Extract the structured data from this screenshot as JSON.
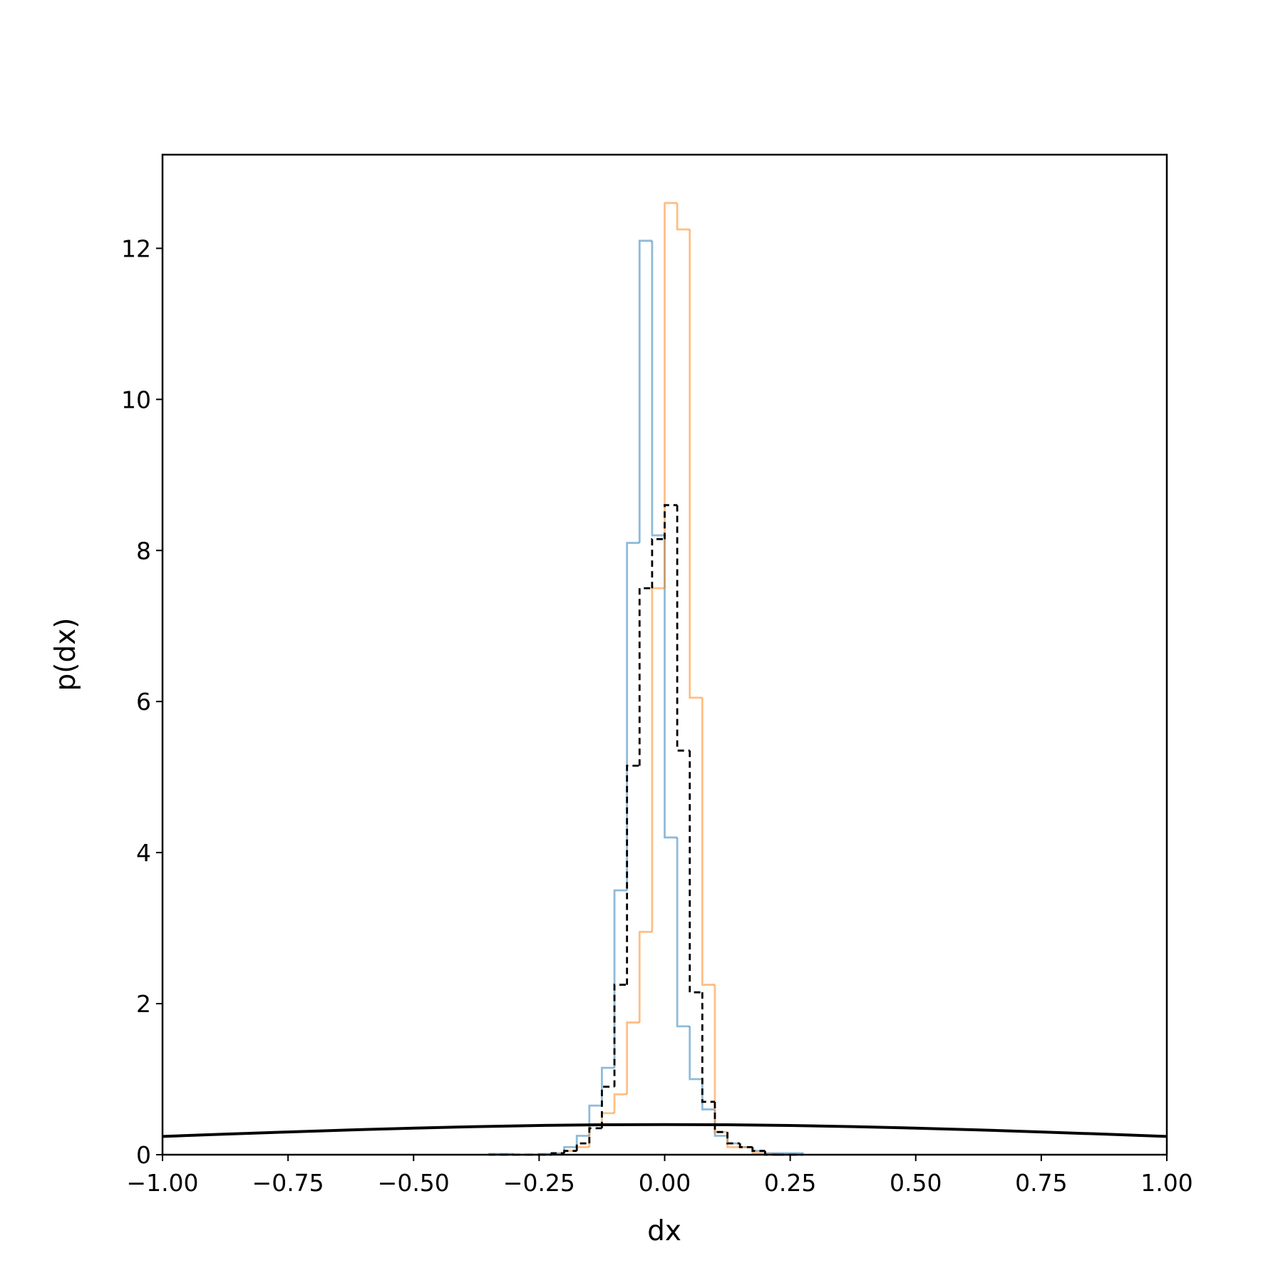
{
  "chart_data": {
    "type": "histogram",
    "xlabel": "dx",
    "ylabel": "p(dx)",
    "bins": [
      -0.35,
      -0.325,
      -0.3,
      -0.275,
      -0.25,
      -0.225,
      -0.2,
      -0.175,
      -0.15,
      -0.125,
      -0.1,
      -0.075,
      -0.05,
      -0.025,
      0,
      0.025,
      0.05,
      0.075,
      0.1,
      0.125,
      0.15,
      0.175,
      0.2,
      0.225,
      0.25,
      0.275
    ],
    "series": [
      {
        "color": "#1f77b4",
        "alpha": 0.5,
        "linestyle": "solid",
        "values": [
          0.01,
          0.01,
          0,
          0,
          0.01,
          0.02,
          0.1,
          0.25,
          0.65,
          1.15,
          3.5,
          8.1,
          12.1,
          8.2,
          4.2,
          1.7,
          1.0,
          0.6,
          0.25,
          0.15,
          0.1,
          0.05,
          0.02,
          0.02,
          0.02
        ]
      },
      {
        "color": "#ff7f0e",
        "alpha": 0.5,
        "linestyle": "solid",
        "values": [
          0,
          0,
          0,
          0,
          0,
          0.01,
          0.05,
          0.1,
          0.4,
          0.55,
          0.8,
          1.75,
          2.95,
          7.5,
          12.6,
          12.25,
          6.05,
          2.25,
          0.3,
          0.1,
          0.1,
          0.02,
          0.01,
          0,
          0
        ]
      },
      {
        "color": "#000000",
        "alpha": 1,
        "linestyle": "dashed",
        "values": [
          0,
          0,
          0,
          0,
          0,
          0.02,
          0.05,
          0.15,
          0.35,
          0.9,
          2.25,
          5.15,
          7.5,
          8.15,
          8.6,
          5.35,
          2.15,
          0.7,
          0.3,
          0.15,
          0.1,
          0.05,
          0,
          0,
          0
        ]
      }
    ],
    "lines": [
      {
        "color": "#000000",
        "x": [
          -1,
          -0.875,
          -0.75,
          -0.625,
          -0.5,
          -0.375,
          -0.25,
          -0.125,
          0,
          0.125,
          0.25,
          0.375,
          0.5,
          0.625,
          0.75,
          0.875,
          1
        ],
        "y": [
          0.242,
          0.272,
          0.301,
          0.328,
          0.352,
          0.372,
          0.387,
          0.396,
          0.399,
          0.396,
          0.387,
          0.372,
          0.352,
          0.328,
          0.301,
          0.272,
          0.242
        ]
      }
    ],
    "xlim": [
      -1,
      1
    ],
    "ylim": [
      0,
      13.24
    ],
    "xticks": [
      {
        "value": -1,
        "label": "−1.00"
      },
      {
        "value": -0.75,
        "label": "−0.75"
      },
      {
        "value": -0.5,
        "label": "−0.50"
      },
      {
        "value": -0.25,
        "label": "−0.25"
      },
      {
        "value": 0,
        "label": "0.00"
      },
      {
        "value": 0.25,
        "label": "0.25"
      },
      {
        "value": 0.5,
        "label": "0.50"
      },
      {
        "value": 0.75,
        "label": "0.75"
      },
      {
        "value": 1,
        "label": "1.00"
      }
    ],
    "yticks": [
      0,
      2,
      4,
      6,
      8,
      10,
      12
    ],
    "grid": false
  }
}
